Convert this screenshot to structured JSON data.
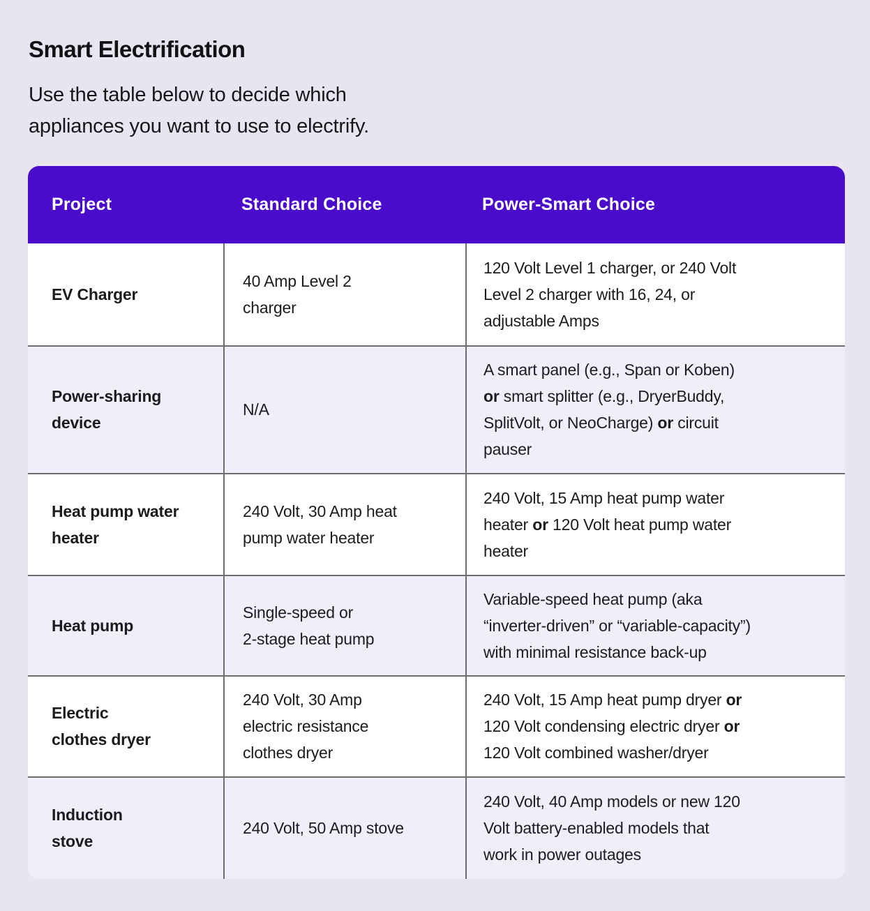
{
  "intro": {
    "title": "Smart Electrification",
    "subtitle": "Use the table below to decide which\nappliances you want to use to electrify."
  },
  "colors": {
    "header_background": "#4B0BCB",
    "page_background": "#E8E5F1",
    "alternate_row_background": "#F1EEF9",
    "row_background": "#FFFFFF",
    "grid_border": "#6d6d6d",
    "header_text": "#FFFFFF",
    "body_text": "#1c1c1f"
  },
  "table": {
    "headers": [
      "Project",
      "Standard Choice",
      "Power-Smart Choice"
    ],
    "rows": [
      {
        "project": "EV Charger",
        "standard": "40 Amp Level 2\ncharger",
        "power_smart": [
          {
            "text": "120 Volt Level 1 charger, or 240 Volt\nLevel 2 charger with 16, 24, or\nadjustable Amps"
          }
        ]
      },
      {
        "project": "Power-sharing\ndevice",
        "standard": "N/A",
        "power_smart": [
          {
            "text": "A smart panel (e.g., Span or Koben)\n"
          },
          {
            "text": "or",
            "bold": true
          },
          {
            "text": " smart splitter (e.g., DryerBuddy,\nSplitVolt, or NeoCharge) "
          },
          {
            "text": "or",
            "bold": true
          },
          {
            "text": " circuit\npauser"
          }
        ]
      },
      {
        "project": "Heat pump water\nheater",
        "standard": "240 Volt, 30 Amp heat\npump water heater",
        "power_smart": [
          {
            "text": "240 Volt, 15 Amp heat pump water\nheater "
          },
          {
            "text": "or",
            "bold": true
          },
          {
            "text": " 120 Volt heat pump water\nheater"
          }
        ]
      },
      {
        "project": "Heat pump",
        "standard": "Single-speed or\n2-stage heat pump",
        "power_smart": [
          {
            "text": "Variable-speed heat pump (aka\n“inverter-driven” or “variable-capacity”)\nwith minimal resistance back-up"
          }
        ]
      },
      {
        "project": "Electric\nclothes dryer",
        "standard": "240 Volt, 30 Amp\nelectric resistance\nclothes dryer",
        "power_smart": [
          {
            "text": "240 Volt, 15 Amp heat pump dryer "
          },
          {
            "text": "or",
            "bold": true
          },
          {
            "text": "\n120 Volt condensing electric dryer "
          },
          {
            "text": "or",
            "bold": true
          },
          {
            "text": "\n120 Volt combined washer/dryer"
          }
        ]
      },
      {
        "project": "Induction\nstove",
        "standard": "240 Volt, 50 Amp stove",
        "power_smart": [
          {
            "text": "240 Volt, 40 Amp models or new 120\nVolt battery-enabled models that\nwork in power outages"
          }
        ]
      }
    ]
  }
}
